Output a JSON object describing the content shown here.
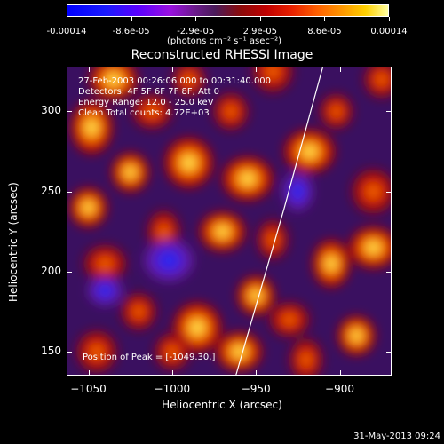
{
  "colorbar": {
    "ticks": [
      "-0.00014",
      "-8.6e-05",
      "-2.9e-05",
      "2.9e-05",
      "8.6e-05",
      "0.00014"
    ],
    "units": "(photons cm⁻² s⁻¹ asec⁻²)"
  },
  "chart_data": {
    "type": "heatmap",
    "title": "Reconstructed RHESSI Image",
    "xlabel": "Heliocentric X (arcsec)",
    "ylabel": "Heliocentric Y (arcsec)",
    "xlim": [
      -1063,
      -869
    ],
    "ylim": [
      135,
      328
    ],
    "x_ticks": [
      -1050,
      -1000,
      -950,
      -900
    ],
    "y_ticks": [
      150,
      200,
      250,
      300
    ],
    "x_tick_labels": [
      "−1050",
      "−1000",
      "−950",
      "−900"
    ],
    "y_tick_labels": [
      "150",
      "200",
      "250",
      "300"
    ],
    "colorbar_range": [
      -0.00014,
      0.00014
    ],
    "limb_line": [
      [
        -962,
        135
      ],
      [
        -933,
        240
      ],
      [
        -910,
        328
      ]
    ],
    "blobs": [
      {
        "x": -1048,
        "y": 290,
        "v": 1.0
      },
      {
        "x": -1012,
        "y": 300,
        "v": 0.6
      },
      {
        "x": -1025,
        "y": 262,
        "v": 0.8
      },
      {
        "x": -990,
        "y": 268,
        "v": 0.9
      },
      {
        "x": -965,
        "y": 300,
        "v": 0.7
      },
      {
        "x": -955,
        "y": 258,
        "v": 1.0
      },
      {
        "x": -940,
        "y": 220,
        "v": 0.5
      },
      {
        "x": -918,
        "y": 275,
        "v": 1.0
      },
      {
        "x": -902,
        "y": 300,
        "v": 0.6
      },
      {
        "x": -880,
        "y": 250,
        "v": 0.7
      },
      {
        "x": -1050,
        "y": 240,
        "v": 0.8
      },
      {
        "x": -1040,
        "y": 205,
        "v": 0.7
      },
      {
        "x": -1005,
        "y": 225,
        "v": 0.6
      },
      {
        "x": -970,
        "y": 225,
        "v": 0.8
      },
      {
        "x": -1020,
        "y": 175,
        "v": 0.7
      },
      {
        "x": -985,
        "y": 165,
        "v": 0.9
      },
      {
        "x": -950,
        "y": 185,
        "v": 0.8
      },
      {
        "x": -930,
        "y": 170,
        "v": 0.6
      },
      {
        "x": -905,
        "y": 205,
        "v": 0.8
      },
      {
        "x": -880,
        "y": 215,
        "v": 0.9
      },
      {
        "x": -890,
        "y": 160,
        "v": 0.8
      },
      {
        "x": -1045,
        "y": 150,
        "v": 0.6
      },
      {
        "x": -1000,
        "y": 150,
        "v": 0.7
      },
      {
        "x": -960,
        "y": 150,
        "v": 0.8
      },
      {
        "x": -920,
        "y": 145,
        "v": 0.6
      },
      {
        "x": -1035,
        "y": 320,
        "v": 0.9
      },
      {
        "x": -990,
        "y": 320,
        "v": 0.6
      },
      {
        "x": -940,
        "y": 325,
        "v": 0.6
      },
      {
        "x": -875,
        "y": 320,
        "v": 0.7
      },
      {
        "x": -1002,
        "y": 207,
        "v": -1.0
      },
      {
        "x": -925,
        "y": 250,
        "v": -0.5
      },
      {
        "x": -1040,
        "y": 188,
        "v": -0.4
      }
    ]
  },
  "info": {
    "time": "27-Feb-2003 00:26:06.000 to 00:31:40.000",
    "detectors": "Detectors: 4F 5F 6F 7F 8F, Att 0",
    "energy": "Energy Range: 12.0 - 25.0 keV",
    "method": "Clean    Total counts: 4.72E+03"
  },
  "peak": "Position of Peak = [-1049.30,]",
  "footer_date": "31-May-2013 09:24"
}
